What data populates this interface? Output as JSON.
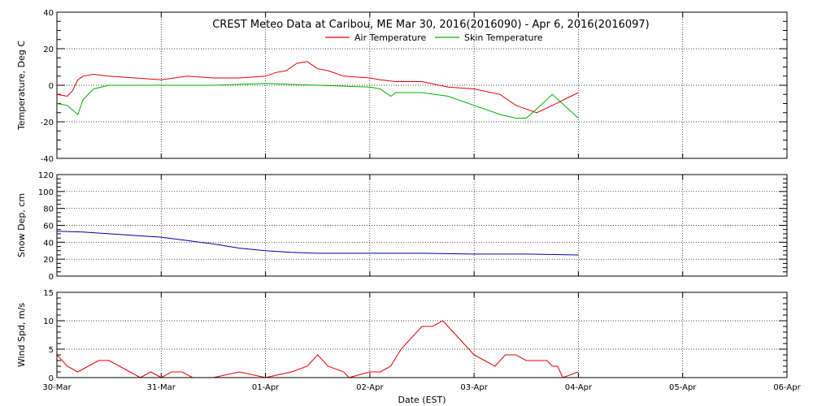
{
  "chart_data": [
    {
      "type": "line",
      "title": "CREST Meteo Data at Caribou, ME   Mar 30, 2016(2016090) - Apr  6, 2016(2016097)",
      "ylabel": "Temperature, Deg C",
      "ylim": [
        -40,
        40
      ],
      "yticks": [
        "40",
        "20",
        "0",
        "-20",
        "-40"
      ],
      "grid": true,
      "legend": "top-center",
      "series": [
        {
          "name": "Air Temperature",
          "color": "#e00000",
          "x": [
            0.0,
            0.1,
            0.15,
            0.2,
            0.25,
            0.35,
            0.5,
            0.75,
            1.0,
            1.25,
            1.5,
            1.75,
            2.0,
            2.1,
            2.2,
            2.3,
            2.4,
            2.45,
            2.5,
            2.6,
            2.75,
            3.0,
            3.1,
            3.25,
            3.5,
            3.75,
            4.0,
            4.25,
            4.4,
            4.5,
            4.6,
            4.75,
            5.0
          ],
          "y": [
            -5,
            -6,
            -3,
            3,
            5,
            6,
            5,
            4,
            3,
            5,
            4,
            4,
            5,
            7,
            8,
            12,
            13,
            11,
            9,
            8,
            5,
            4,
            3,
            2,
            2,
            -1,
            -2,
            -5,
            -11,
            -13,
            -15,
            -11,
            -4
          ]
        },
        {
          "name": "Skin Temperature",
          "color": "#00b000",
          "x": [
            0.0,
            0.1,
            0.2,
            0.25,
            0.35,
            0.5,
            1.0,
            1.5,
            2.0,
            2.5,
            3.0,
            3.1,
            3.2,
            3.25,
            3.5,
            3.75,
            4.0,
            4.25,
            4.4,
            4.5,
            4.6,
            4.75,
            5.0
          ],
          "y": [
            -10,
            -11,
            -16,
            -8,
            -2,
            0,
            0,
            0,
            1,
            0,
            -1,
            -2,
            -6,
            -4,
            -4,
            -6,
            -11,
            -16,
            -18,
            -18,
            -13,
            -5,
            -18
          ]
        }
      ]
    },
    {
      "type": "line",
      "ylabel": "Snow Dep, cm",
      "ylim": [
        0,
        120
      ],
      "yticks": [
        "120",
        "100",
        "80",
        "60",
        "40",
        "20",
        "0"
      ],
      "grid": true,
      "series": [
        {
          "name": "",
          "color": "#0000a0",
          "x": [
            0.0,
            0.25,
            0.5,
            0.75,
            1.0,
            1.25,
            1.5,
            1.75,
            2.0,
            2.25,
            2.5,
            2.75,
            3.0,
            3.5,
            4.0,
            4.5,
            5.0
          ],
          "y": [
            53,
            52,
            50,
            48,
            46,
            42,
            38,
            33,
            30,
            28,
            27,
            27,
            27,
            27,
            26,
            26,
            25
          ]
        }
      ]
    },
    {
      "type": "line",
      "ylabel": "Wind Spd, m/s",
      "xlabel": "Date (EST)",
      "ylim": [
        0,
        15
      ],
      "yticks": [
        "15",
        "10",
        "5",
        "0"
      ],
      "categories": [
        "30-Mar",
        "31-Mar",
        "01-Apr",
        "02-Apr",
        "03-Apr",
        "04-Apr",
        "05-Apr",
        "06-Apr"
      ],
      "xlim": [
        0,
        7
      ],
      "grid": true,
      "series": [
        {
          "name": "",
          "color": "#e00000",
          "x": [
            0.0,
            0.05,
            0.1,
            0.2,
            0.3,
            0.4,
            0.5,
            0.6,
            0.7,
            0.8,
            0.9,
            1.0,
            1.1,
            1.2,
            1.3,
            1.5,
            1.75,
            2.0,
            2.25,
            2.4,
            2.5,
            2.6,
            2.75,
            2.8,
            3.0,
            3.1,
            3.2,
            3.3,
            3.4,
            3.5,
            3.6,
            3.7,
            3.8,
            3.9,
            4.0,
            4.1,
            4.2,
            4.3,
            4.4,
            4.5,
            4.6,
            4.7,
            4.75,
            4.8,
            4.85,
            5.0
          ],
          "y": [
            4,
            3,
            2,
            1,
            2,
            3,
            3,
            2,
            1,
            0,
            1,
            0,
            1,
            1,
            0,
            0,
            1,
            0,
            1,
            2,
            4,
            2,
            1,
            0,
            1,
            1,
            2,
            5,
            7,
            9,
            9,
            10,
            8,
            6,
            4,
            3,
            2,
            4,
            4,
            3,
            3,
            3,
            2,
            2,
            0,
            1
          ]
        }
      ]
    }
  ]
}
